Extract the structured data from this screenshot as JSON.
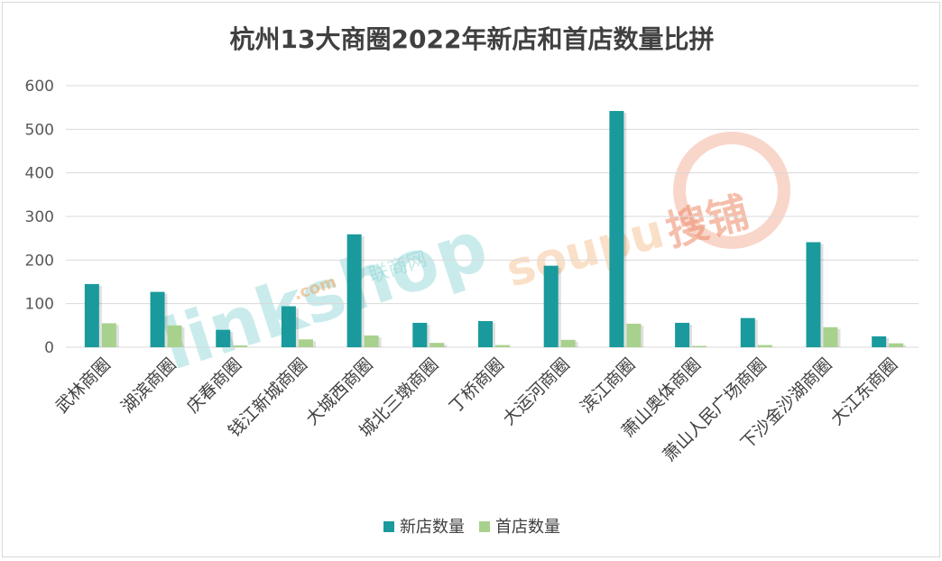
{
  "chart_data": {
    "type": "bar",
    "title": "杭州13大商圈2022年新店和首店数量比拼",
    "categories": [
      "武林商圈",
      "湖滨商圈",
      "庆春商圈",
      "钱江新城商圈",
      "大城西商圈",
      "城北三墩商圈",
      "丁桥商圈",
      "大运河商圈",
      "滨江商圈",
      "萧山奥体商圈",
      "萧山人民广场商圈",
      "下沙金沙湖商圈",
      "大江东商圈"
    ],
    "series": [
      {
        "name": "新店数量",
        "color": "#1a9a9c",
        "values": [
          145,
          127,
          40,
          94,
          259,
          56,
          60,
          187,
          542,
          56,
          67,
          241,
          25
        ]
      },
      {
        "name": "首店数量",
        "color": "#a9d18e",
        "values": [
          55,
          50,
          4,
          18,
          27,
          10,
          5,
          17,
          54,
          3,
          5,
          46,
          9
        ]
      }
    ],
    "yticks": [
      "0",
      "100",
      "200",
      "300",
      "400",
      "500",
      "600"
    ],
    "ylim": [
      0,
      600
    ],
    "grid": true,
    "legend_position": "bottom"
  },
  "watermarks": [
    "linkshop",
    ".com",
    "联商网",
    "soupu",
    "搜铺"
  ]
}
